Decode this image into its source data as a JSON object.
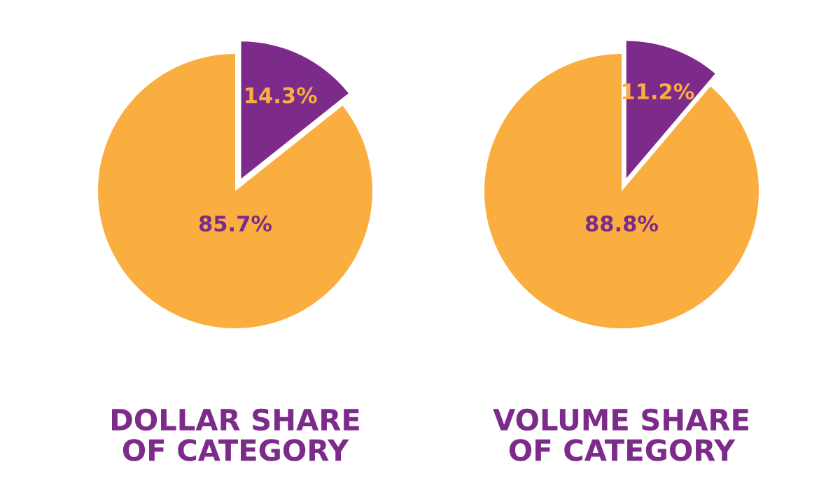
{
  "chart_data": [
    {
      "type": "pie",
      "title": "DOLLAR SHARE\nOF CATEGORY",
      "categories": [
        null,
        null
      ],
      "values": [
        14.3,
        85.7
      ],
      "value_labels": [
        "14.3%",
        "85.7%"
      ],
      "colors": [
        "#7d2b8b",
        "#f9ae3f"
      ]
    },
    {
      "type": "pie",
      "title": "VOLUME SHARE\nOF CATEGORY",
      "categories": [
        null,
        null
      ],
      "values": [
        11.2,
        88.8
      ],
      "value_labels": [
        "11.2%",
        "88.8%"
      ],
      "colors": [
        "#7d2b8b",
        "#f9ae3f"
      ]
    }
  ]
}
